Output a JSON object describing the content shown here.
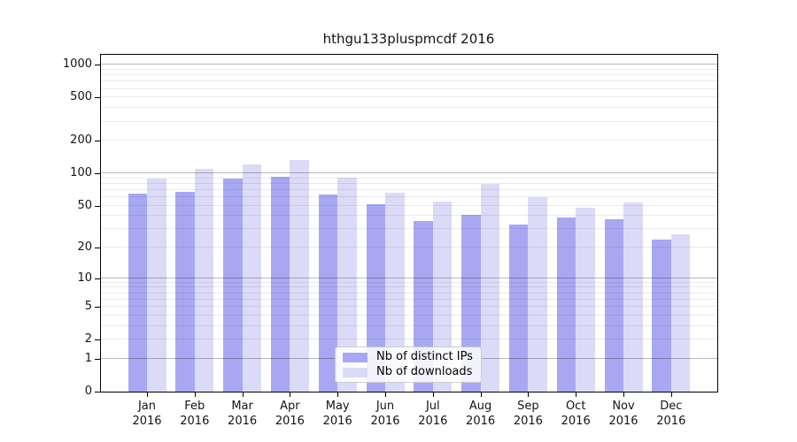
{
  "chart_data": {
    "type": "bar",
    "title": "hthgu133pluspmcdf 2016",
    "categories": [
      "Jan 2016",
      "Feb 2016",
      "Mar 2016",
      "Apr 2016",
      "May 2016",
      "Jun 2016",
      "Jul 2016",
      "Aug 2016",
      "Sep 2016",
      "Oct 2016",
      "Nov 2016",
      "Dec 2016"
    ],
    "series": [
      {
        "name": "Nb of distinct IPs",
        "color": "#a8a8f2",
        "values": [
          65,
          67,
          89,
          92,
          64,
          52,
          36,
          41,
          33,
          39,
          37,
          24
        ]
      },
      {
        "name": "Nb of downloads",
        "color": "#dbdbf8",
        "values": [
          90,
          110,
          121,
          133,
          91,
          66,
          55,
          80,
          60,
          48,
          54,
          27
        ]
      }
    ],
    "xlabel": "",
    "ylabel": "",
    "yscale": "log1p",
    "yticks": [
      0,
      1,
      2,
      5,
      10,
      20,
      50,
      100,
      200,
      500,
      1000
    ],
    "ylim": [
      0,
      1259
    ],
    "grid": true,
    "legend_position": "lower center inside"
  },
  "colors": {
    "axis": "#000000",
    "grid_major": "rgba(0,0,0,0.27)",
    "grid_minor": "rgba(0,0,0,0.08)",
    "background": "#ffffff"
  }
}
